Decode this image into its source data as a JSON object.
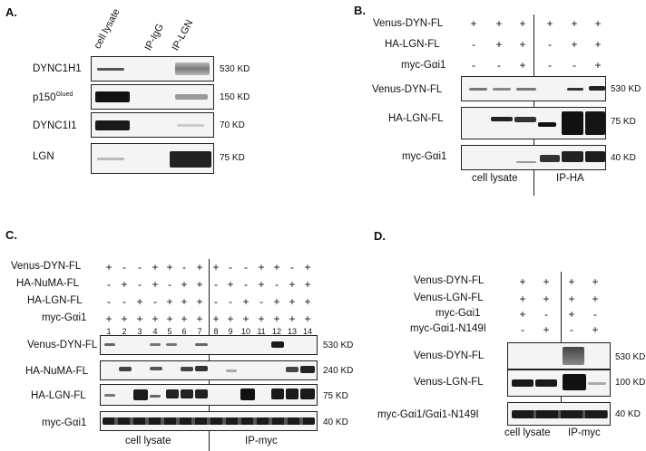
{
  "panelA": {
    "letter": "A.",
    "lanes": [
      "cell lysate",
      "IP-IgG",
      "IP-LGN"
    ],
    "rows": [
      {
        "label": "DYNC1H1",
        "label_sup": "",
        "size": "530 KD"
      },
      {
        "label": "p150",
        "label_sup": "Glued",
        "size": "150 KD"
      },
      {
        "label": "DYNC1I1",
        "label_sup": "",
        "size": "70 KD"
      },
      {
        "label": "LGN",
        "label_sup": "",
        "size": "75 KD"
      }
    ]
  },
  "panelB": {
    "letter": "B.",
    "conditions": [
      {
        "label": "Venus-DYN-FL",
        "signs": [
          "+",
          "+",
          "+",
          "+",
          "+",
          "+"
        ]
      },
      {
        "label": "HA-LGN-FL",
        "signs": [
          "-",
          "+",
          "+",
          "-",
          "+",
          "+"
        ]
      },
      {
        "label": "myc-Gαi1",
        "signs": [
          "-",
          "-",
          "+",
          "-",
          "-",
          "+"
        ]
      }
    ],
    "rows": [
      {
        "label": "Venus-DYN-FL",
        "size": "530 KD"
      },
      {
        "label": "HA-LGN-FL",
        "size": "75 KD"
      },
      {
        "label": "myc-Gαi1",
        "size": "40 KD"
      }
    ],
    "groups": [
      "cell lysate",
      "IP-HA"
    ]
  },
  "panelC": {
    "letter": "C.",
    "conditions": [
      {
        "label": "Venus-DYN-FL",
        "signs": [
          "+",
          "-",
          "-",
          "+",
          "+",
          "-",
          "+",
          "+",
          "-",
          "-",
          "+",
          "+",
          "-",
          "+"
        ]
      },
      {
        "label": "HA-NuMA-FL",
        "signs": [
          "-",
          "+",
          "-",
          "+",
          "-",
          "+",
          "+",
          "-",
          "+",
          "-",
          "+",
          "-",
          "+",
          "+"
        ]
      },
      {
        "label": "HA-LGN-FL",
        "signs": [
          "-",
          "-",
          "+",
          "-",
          "+",
          "+",
          "+",
          "-",
          "-",
          "+",
          "-",
          "+",
          "+",
          "+"
        ]
      },
      {
        "label": "myc-Gαi1",
        "signs": [
          "+",
          "+",
          "+",
          "+",
          "+",
          "+",
          "+",
          "+",
          "+",
          "+",
          "+",
          "+",
          "+",
          "+"
        ]
      }
    ],
    "lane_numbers": [
      "1",
      "2",
      "3",
      "4",
      "5",
      "6",
      "7",
      "8",
      "9",
      "10",
      "11",
      "12",
      "13",
      "14"
    ],
    "rows": [
      {
        "label": "Venus-DYN-FL",
        "size": "530 KD"
      },
      {
        "label": "HA-NuMA-FL",
        "size": "240 KD"
      },
      {
        "label": "HA-LGN-FL",
        "size": "75 KD"
      },
      {
        "label": "myc-Gαi1",
        "size": "40 KD"
      }
    ],
    "groups": [
      "cell lysate",
      "IP-myc"
    ]
  },
  "panelD": {
    "letter": "D.",
    "conditions": [
      {
        "label": "Venus-DYN-FL",
        "signs": [
          "+",
          "+",
          "+",
          "+"
        ]
      },
      {
        "label": "Venus-LGN-FL",
        "signs": [
          "+",
          "+",
          "+",
          "+"
        ]
      },
      {
        "label": "myc-Gαi1",
        "signs": [
          "+",
          "-",
          "+",
          "-"
        ]
      },
      {
        "label": "myc-Gαi1-N149I",
        "signs": [
          "-",
          "+",
          "-",
          "+"
        ]
      }
    ],
    "rows": [
      {
        "label": "Venus-DYN-FL",
        "size": "530 KD"
      },
      {
        "label": "Venus-LGN-FL",
        "size": "100 KD"
      },
      {
        "label": "myc-Gαi1/Gαi1-N149I",
        "size": "40 KD"
      }
    ],
    "groups": [
      "cell lysate",
      "IP-myc"
    ]
  }
}
